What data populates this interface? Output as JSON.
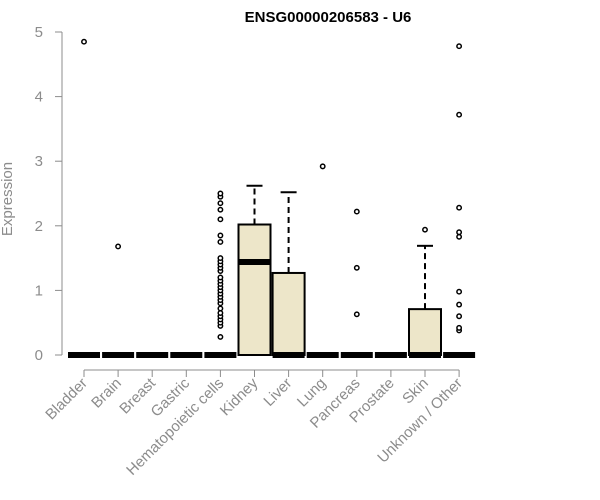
{
  "chart_data": {
    "type": "box",
    "title": "ENSG00000206583 - U6",
    "ylabel": "Expression",
    "ylim": [
      0,
      5
    ],
    "yticks": [
      0,
      1,
      2,
      3,
      4,
      5
    ],
    "categories": [
      "Bladder",
      "Brain",
      "Breast",
      "Gastric",
      "Hematopoietic cells",
      "Kidney",
      "Liver",
      "Lung",
      "Pancreas",
      "Prostate",
      "Skin",
      "Unknown / Other"
    ],
    "boxes": [
      {
        "min": 0,
        "q1": 0,
        "median": 0,
        "q3": 0,
        "max": 0,
        "outliers": [
          4.85
        ]
      },
      {
        "min": 0,
        "q1": 0,
        "median": 0,
        "q3": 0,
        "max": 0,
        "outliers": [
          1.68
        ]
      },
      {
        "min": 0,
        "q1": 0,
        "median": 0,
        "q3": 0,
        "max": 0,
        "outliers": []
      },
      {
        "min": 0,
        "q1": 0,
        "median": 0,
        "q3": 0,
        "max": 0,
        "outliers": []
      },
      {
        "min": 0,
        "q1": 0,
        "median": 0,
        "q3": 0,
        "max": 0,
        "outliers": [
          0.28,
          0.45,
          0.5,
          0.55,
          0.6,
          0.65,
          0.72,
          0.8,
          0.85,
          0.9,
          0.95,
          1.0,
          1.05,
          1.1,
          1.15,
          1.2,
          1.3,
          1.35,
          1.4,
          1.45,
          1.5,
          1.75,
          1.85,
          2.1,
          2.25,
          2.35,
          2.45,
          2.5
        ]
      },
      {
        "min": 0,
        "q1": 0,
        "median": 1.44,
        "q3": 2.02,
        "max": 2.62,
        "outliers": []
      },
      {
        "min": 0,
        "q1": 0,
        "median": 0,
        "q3": 1.27,
        "max": 2.52,
        "outliers": []
      },
      {
        "min": 0,
        "q1": 0,
        "median": 0,
        "q3": 0,
        "max": 0,
        "outliers": [
          2.92
        ]
      },
      {
        "min": 0,
        "q1": 0,
        "median": 0,
        "q3": 0,
        "max": 0,
        "outliers": [
          0.63,
          1.35,
          2.22
        ]
      },
      {
        "min": 0,
        "q1": 0,
        "median": 0,
        "q3": 0,
        "max": 0,
        "outliers": []
      },
      {
        "min": 0,
        "q1": 0,
        "median": 0,
        "q3": 0.71,
        "max": 1.69,
        "outliers": [
          1.94
        ]
      },
      {
        "min": 0,
        "q1": 0,
        "median": 0,
        "q3": 0,
        "max": 0,
        "outliers": [
          0.38,
          0.42,
          0.6,
          0.78,
          0.98,
          1.83,
          1.9,
          2.28,
          3.72,
          4.78
        ]
      }
    ],
    "box_fill": "#ede6c9",
    "axis_color": "#8c8c8c"
  }
}
